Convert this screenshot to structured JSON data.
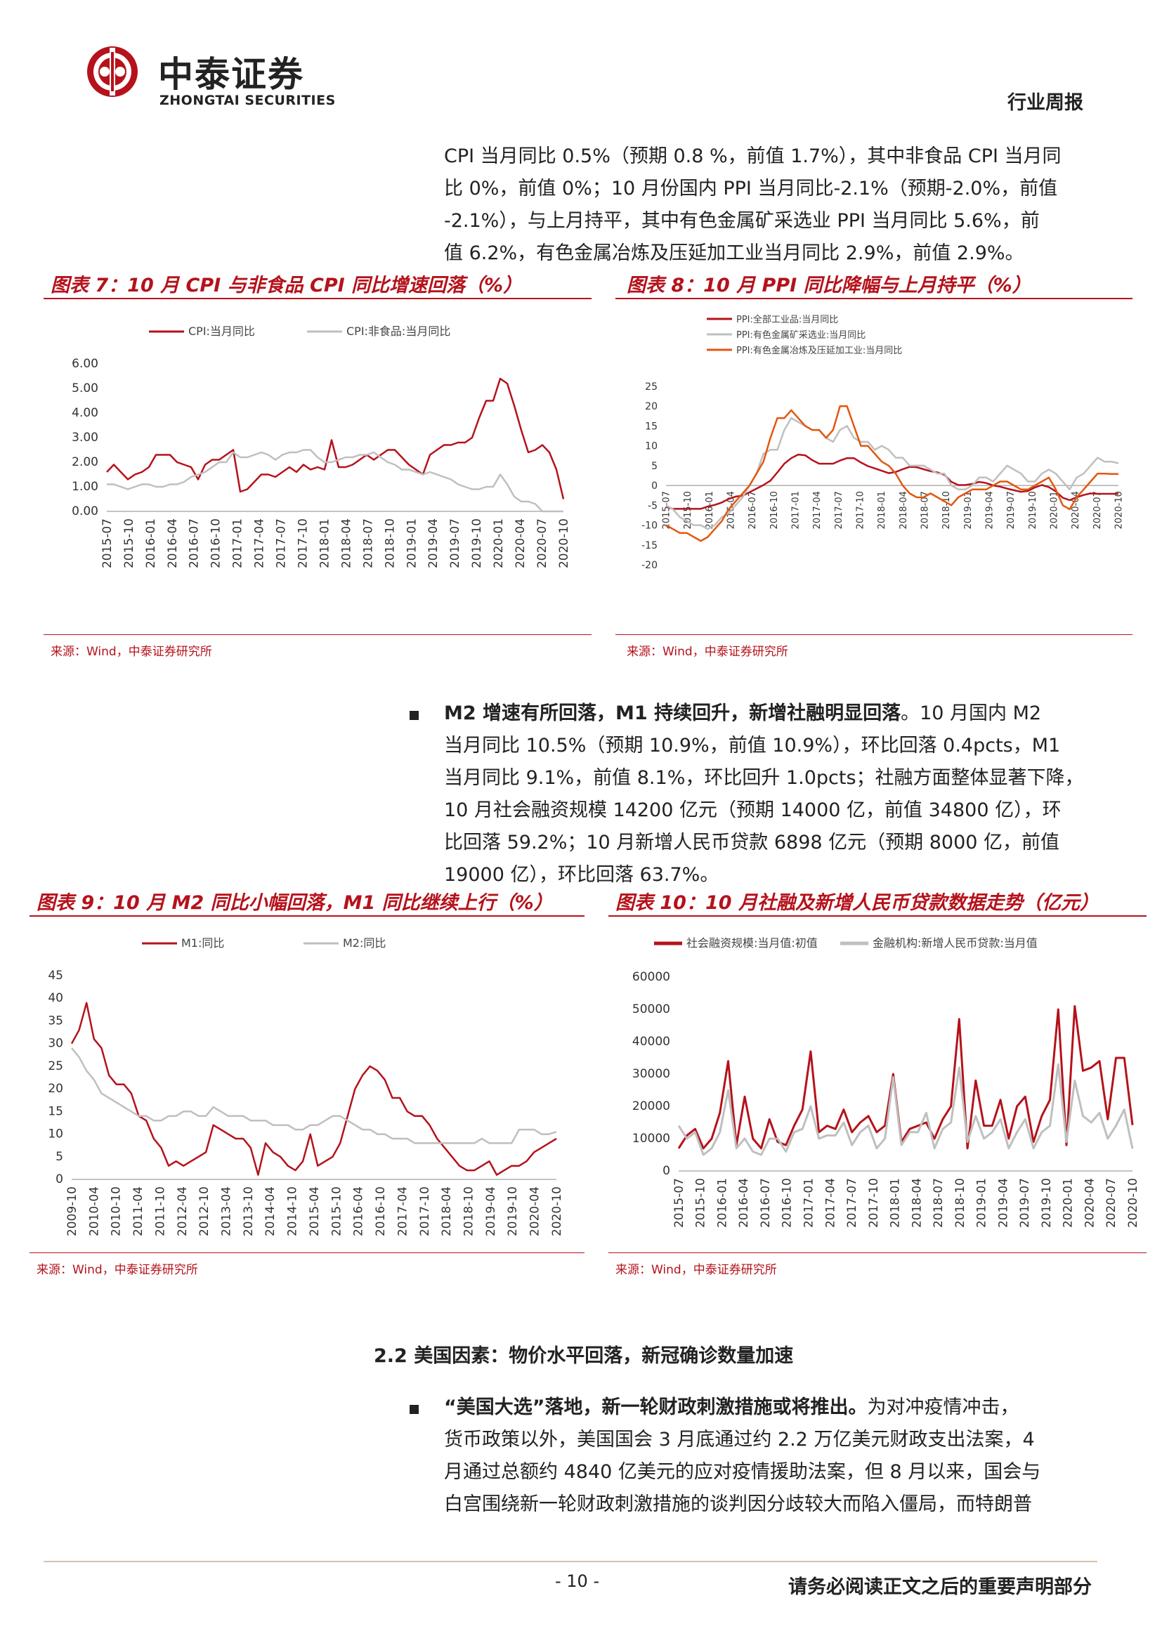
{
  "header": {
    "brand_cn": "中泰证券",
    "brand_en": "ZHONGTAI SECURITIES",
    "doc_type": "行业周报",
    "brand_color": "#b5121b"
  },
  "intro_paragraph": [
    "CPI 当月同比 0.5%（预期 0.8 %，前值 1.7%），其中非食品 CPI 当月同",
    "比 0%，前值 0%；10 月份国内 PPI 当月同比-2.1%（预期-2.0%，前值",
    "-2.1%），与上月持平，其中有色金属矿采选业 PPI 当月同比 5.6%，前",
    "值 6.2%，有色金属冶炼及压延加工业当月同比 2.9%，前值 2.9%。"
  ],
  "fig7": {
    "title": "图表 7：10 月 CPI 与非食品 CPI 同比增速回落（%）",
    "source": "来源：Wind，中泰证券研究所"
  },
  "fig8": {
    "title": "图表 8：10 月 PPI 同比降幅与上月持平（%）",
    "source": "来源：Wind，中泰证券研究所"
  },
  "fig9": {
    "title": "图表 9：10 月 M2 同比小幅回落，M1 同比继续上行（%）",
    "source": "来源：Wind，中泰证券研究所"
  },
  "fig10": {
    "title": "图表 10：10 月社融及新增人民币贷款数据走势（亿元）",
    "source": "来源：Wind，中泰证券研究所"
  },
  "m2_paragraph": {
    "lead": "M2 增速有所回落，M1 持续回升，新增社融明显回落",
    "lines": [
      "。10 月国内 M2",
      "当月同比 10.5%（预期 10.9%，前值 10.9%），环比回落 0.4pcts，M1",
      "当月同比 9.1%，前值 8.1%，环比回升 1.0pcts；社融方面整体显著下降，",
      "10 月社会融资规模 14200 亿元（预期 14000 亿，前值 34800 亿），环",
      "比回落 59.2%；10 月新增人民币贷款 6898 亿元（预期 8000 亿，前值",
      "19000 亿），环比回落 63.7%。"
    ]
  },
  "section_title": "2.2 美国因素：物价水平回落，新冠确诊数量加速",
  "us_paragraph": {
    "lead": "“美国大选”落地，新一轮财政刺激措施或将推出。",
    "lines": [
      "为对冲疫情冲击，",
      "货币政策以外，美国国会 3 月底通过约 2.2 万亿美元财政支出法案，4",
      "月通过总额约 4840 亿美元的应对疫情援助法案，但 8 月以来，国会与",
      "白宫围绕新一轮财政刺激措施的谈判因分歧较大而陷入僵局，而特朗普"
    ]
  },
  "footer": {
    "page": "- 10 -",
    "notice": "请务必阅读正文之后的重要声明部分"
  },
  "chart_data": [
    {
      "id": "fig7",
      "type": "line",
      "ylim": [
        0,
        6
      ],
      "yticks": [
        "6.00",
        "5.00",
        "4.00",
        "3.00",
        "2.00",
        "1.00",
        "0.00"
      ],
      "xticks": [
        "2015-07",
        "2015-10",
        "2016-01",
        "2016-04",
        "2016-07",
        "2016-10",
        "2017-01",
        "2017-04",
        "2017-07",
        "2017-10",
        "2018-01",
        "2018-04",
        "2018-07",
        "2018-10",
        "2019-01",
        "2019-04",
        "2019-07",
        "2019-10",
        "2020-01",
        "2020-04",
        "2020-07",
        "2020-10"
      ],
      "legend_position": "top",
      "series": [
        {
          "name": "CPI:当月同比",
          "color": "#b5121b",
          "values": [
            1.6,
            1.9,
            1.6,
            1.3,
            1.5,
            1.6,
            1.8,
            2.3,
            2.3,
            2.3,
            2.0,
            1.9,
            1.8,
            1.3,
            1.9,
            2.1,
            2.1,
            2.3,
            2.5,
            0.8,
            0.9,
            1.2,
            1.5,
            1.5,
            1.4,
            1.6,
            1.8,
            1.6,
            1.9,
            1.7,
            1.8,
            1.7,
            2.9,
            1.8,
            1.8,
            1.9,
            2.1,
            2.3,
            2.1,
            2.3,
            2.5,
            2.5,
            2.2,
            1.9,
            1.7,
            1.5,
            2.3,
            2.5,
            2.7,
            2.7,
            2.8,
            2.8,
            3.0,
            3.8,
            4.5,
            4.5,
            5.4,
            5.2,
            4.3,
            3.3,
            2.4,
            2.5,
            2.7,
            2.4,
            1.7,
            0.5
          ]
        },
        {
          "name": "CPI:非食品:当月同比",
          "color": "#bfbfbf",
          "values": [
            1.1,
            1.1,
            1.0,
            0.9,
            1.0,
            1.1,
            1.1,
            1.0,
            1.0,
            1.1,
            1.1,
            1.2,
            1.4,
            1.5,
            1.6,
            1.8,
            2.0,
            2.0,
            2.4,
            2.2,
            2.2,
            2.3,
            2.4,
            2.3,
            2.1,
            2.3,
            2.4,
            2.4,
            2.5,
            2.5,
            2.2,
            2.0,
            2.0,
            2.1,
            2.2,
            2.2,
            2.3,
            2.3,
            2.4,
            2.2,
            2.0,
            1.9,
            1.7,
            1.7,
            1.6,
            1.5,
            1.6,
            1.5,
            1.4,
            1.3,
            1.1,
            1.0,
            0.9,
            0.9,
            1.0,
            1.0,
            1.5,
            1.1,
            0.6,
            0.4,
            0.4,
            0.3,
            0.0,
            0.0,
            0.0,
            0.0
          ]
        }
      ]
    },
    {
      "id": "fig8",
      "type": "line",
      "ylim": [
        -20,
        25
      ],
      "yticks": [
        "25",
        "20",
        "15",
        "10",
        "5",
        "0",
        "-5",
        "-10",
        "-15",
        "-20"
      ],
      "xticks": [
        "2015-07",
        "2015-10",
        "2016-01",
        "2016-04",
        "2016-07",
        "2016-10",
        "2017-01",
        "2017-04",
        "2017-07",
        "2017-10",
        "2018-01",
        "2018-04",
        "2018-07",
        "2018-10",
        "2019-01",
        "2019-04",
        "2019-07",
        "2019-10",
        "2020-01",
        "2020-04",
        "2020-07",
        "2020-10"
      ],
      "legend_position": "top-left",
      "series": [
        {
          "name": "PPI:全部工业品:当月同比",
          "color": "#b5121b",
          "values": [
            -5.4,
            -5.9,
            -5.9,
            -5.9,
            -5.9,
            -5.9,
            -5.3,
            -4.9,
            -4.3,
            -3.4,
            -2.8,
            -2.6,
            -1.7,
            -0.8,
            0.1,
            1.2,
            3.3,
            5.5,
            6.9,
            7.8,
            7.6,
            6.4,
            5.5,
            5.5,
            5.5,
            6.3,
            6.9,
            6.9,
            5.8,
            4.9,
            4.3,
            3.7,
            3.1,
            3.4,
            4.1,
            4.7,
            4.6,
            4.1,
            3.6,
            3.3,
            2.7,
            0.9,
            0.1,
            0.1,
            0.4,
            0.9,
            0.6,
            0.0,
            -0.3,
            -0.8,
            -1.2,
            -1.6,
            -1.4,
            -0.5,
            0.1,
            -0.4,
            -1.5,
            -3.1,
            -3.7,
            -3.0,
            -2.4,
            -2.0,
            -2.1,
            -2.1,
            -2.1,
            -2.1
          ]
        },
        {
          "name": "PPI:有色金属矿采选业:当月同比",
          "color": "#bfbfbf",
          "values": [
            -5,
            -6,
            -8,
            -9,
            -10,
            -10,
            -11,
            -10,
            -8,
            -7,
            -5,
            -3,
            0,
            3,
            8,
            9,
            9,
            14,
            17,
            16,
            15,
            14,
            14,
            12,
            11,
            14,
            15,
            12,
            11,
            11,
            9,
            10,
            9,
            7,
            7,
            5,
            5,
            5,
            4,
            3,
            3,
            0,
            -1,
            -1,
            0,
            2,
            2,
            1,
            3,
            5,
            4,
            3,
            1,
            1,
            3,
            4,
            3,
            1,
            -1,
            2,
            3,
            5,
            7,
            6,
            6,
            5.6
          ]
        },
        {
          "name": "PPI:有色金属冶炼及压延加工业:当月同比",
          "color": "#e3570f",
          "values": [
            -10,
            -11,
            -12,
            -12,
            -13,
            -14,
            -13,
            -11,
            -9,
            -6,
            -4,
            -2,
            0,
            3,
            6,
            12,
            17,
            17,
            19,
            17,
            15,
            14,
            14,
            12,
            14,
            20,
            20,
            15,
            10,
            10,
            8,
            6,
            5,
            3,
            0,
            -2,
            -3,
            -3,
            -2,
            -3,
            -4,
            -5,
            -3,
            -2,
            -1,
            -1,
            -1,
            0,
            1,
            1,
            0,
            -1,
            -1,
            0,
            1,
            2,
            -1,
            -5,
            -6,
            -3,
            -1,
            1,
            3,
            3,
            2.9,
            2.9
          ]
        }
      ]
    },
    {
      "id": "fig9",
      "type": "line",
      "ylim": [
        0,
        45
      ],
      "yticks": [
        "45",
        "40",
        "35",
        "30",
        "25",
        "20",
        "15",
        "10",
        "5",
        "0"
      ],
      "xticks": [
        "2009-10",
        "2010-04",
        "2010-10",
        "2011-04",
        "2011-10",
        "2012-04",
        "2012-10",
        "2013-04",
        "2013-10",
        "2014-04",
        "2014-10",
        "2015-04",
        "2015-10",
        "2016-04",
        "2016-10",
        "2017-04",
        "2017-10",
        "2018-04",
        "2018-10",
        "2019-04",
        "2019-10",
        "2020-04",
        "2020-10"
      ],
      "legend_position": "top",
      "series": [
        {
          "name": "M1:同比",
          "color": "#b5121b",
          "values": [
            30,
            33,
            39,
            31,
            29,
            23,
            21,
            21,
            19,
            14,
            13,
            9,
            7,
            3,
            4,
            3,
            4,
            5,
            6,
            12,
            11,
            10,
            9,
            9,
            7,
            1,
            8,
            6,
            5,
            3,
            2,
            4,
            10,
            3,
            4,
            5,
            8,
            14,
            20,
            23,
            25,
            24,
            22,
            18,
            18,
            15,
            14,
            14,
            12,
            9,
            7,
            5,
            3,
            2,
            2,
            3,
            4,
            1,
            2,
            3,
            3,
            4,
            6,
            7,
            8,
            9
          ]
        },
        {
          "name": "M2:同比",
          "color": "#bfbfbf",
          "values": [
            29,
            27,
            24,
            22,
            19,
            18,
            17,
            16,
            15,
            14,
            14,
            13,
            13,
            14,
            14,
            15,
            15,
            14,
            14,
            16,
            15,
            14,
            14,
            14,
            13,
            13,
            13,
            12,
            12,
            12,
            11,
            11,
            12,
            12,
            13,
            14,
            14,
            13,
            12,
            11,
            11,
            10,
            10,
            9,
            9,
            9,
            8,
            8,
            8,
            8,
            8,
            8,
            8,
            8,
            8,
            9,
            8,
            8,
            8,
            8,
            11,
            11,
            11,
            10,
            10,
            10.5
          ]
        }
      ]
    },
    {
      "id": "fig10",
      "type": "line",
      "ylim": [
        0,
        60000
      ],
      "yticks": [
        "60000",
        "50000",
        "40000",
        "30000",
        "20000",
        "10000",
        "0"
      ],
      "xticks": [
        "2015-07",
        "2015-10",
        "2016-01",
        "2016-04",
        "2016-07",
        "2016-10",
        "2017-01",
        "2017-04",
        "2017-07",
        "2017-10",
        "2018-01",
        "2018-04",
        "2018-07",
        "2018-10",
        "2019-01",
        "2019-04",
        "2019-07",
        "2019-10",
        "2020-01",
        "2020-04",
        "2020-07",
        "2020-10"
      ],
      "legend_position": "top",
      "series": [
        {
          "name": "社会融资规模:当月值:初值",
          "color": "#b5121b",
          "values": [
            7000,
            11000,
            13000,
            7000,
            10000,
            18000,
            34000,
            8000,
            23000,
            10000,
            7000,
            16000,
            9000,
            8000,
            14000,
            19000,
            37000,
            12000,
            14000,
            13000,
            19000,
            12000,
            15000,
            17000,
            12000,
            14000,
            30000,
            9000,
            13000,
            14000,
            15000,
            10000,
            16000,
            20000,
            47000,
            7000,
            28000,
            14000,
            14000,
            22000,
            10000,
            20000,
            23000,
            9000,
            17000,
            22000,
            50000,
            8000,
            51000,
            31000,
            32000,
            34000,
            16000,
            35000,
            35000,
            14200
          ]
        },
        {
          "name": "金融机构:新增人民币贷款:当月值",
          "color": "#bfbfbf",
          "values": [
            14000,
            10000,
            12000,
            5000,
            7000,
            12000,
            25000,
            7000,
            10000,
            6000,
            5000,
            10000,
            10000,
            6000,
            12000,
            13000,
            20000,
            10000,
            11000,
            11000,
            15000,
            8000,
            12000,
            14000,
            7000,
            10000,
            29000,
            8000,
            12000,
            12000,
            18000,
            7000,
            13000,
            15000,
            32000,
            9000,
            17000,
            10000,
            12000,
            16000,
            7000,
            12000,
            16000,
            7000,
            12000,
            14000,
            33000,
            9000,
            28000,
            17000,
            15000,
            18000,
            10000,
            14000,
            19000,
            6898
          ]
        }
      ]
    }
  ]
}
